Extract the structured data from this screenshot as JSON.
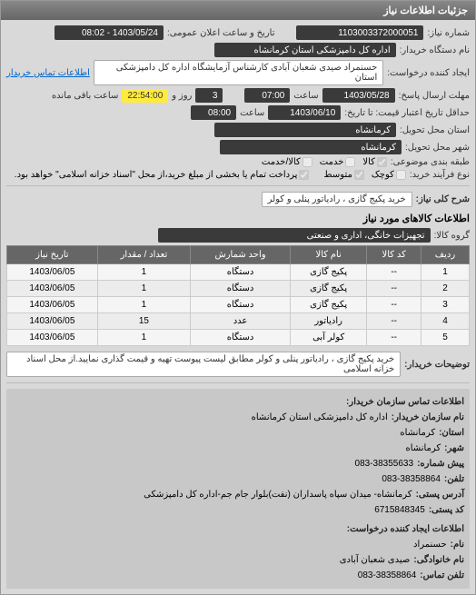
{
  "panel_title": "جزئیات اطلاعات نیاز",
  "top": {
    "need_no_label": "شماره نیاز:",
    "need_no": "1103003372000051",
    "announce_label": "تاریخ و ساعت اعلان عمومی:",
    "announce": "1403/05/24 - 08:02",
    "buyer_org_label": "نام دستگاه خریدار:",
    "buyer_org": "اداره کل دامپزشکی استان کرمانشاه",
    "creator_label": "ایجاد کننده درخواست:",
    "creator": "حسنمراد صیدی شعبان آبادی کارشناس آزمایشگاه اداره کل دامپزشکی استان",
    "contact_link": "اطلاعات تماس خریدار",
    "deadline_label": "مهلت ارسال پاسخ:",
    "deadline_date": "1403/05/28",
    "deadline_time_label": "ساعت",
    "deadline_time": "07:00",
    "days_label": "روز و",
    "days": "3",
    "remain_time": "22:54:00",
    "remain_label": "ساعت باقی مانده",
    "validity_label": "حداقل تاریخ اعتبار قیمت: تا تاریخ:",
    "validity_date": "1403/06/10",
    "validity_time_label": "ساعت",
    "validity_time": "08:00",
    "province_label": "استان محل تحویل:",
    "province": "کرمانشاه",
    "city_label": "شهر محل تحویل:",
    "city": "کرمانشاه",
    "subject_cat_label": "طبقه بندی موضوعی:",
    "cb_goods": "کالا",
    "cb_service": "خدمت",
    "cb_goods_service": "کالا/خدمت",
    "process_type_label": "نوع فرآیند خرید:",
    "cb_small": "کوچک",
    "cb_medium": "متوسط",
    "payment_note": "پرداخت تمام یا بخشی از مبلغ خرید،از محل \"اسناد خزانه اسلامی\" خواهد بود."
  },
  "need": {
    "title_label": "شرح کلی نیاز:",
    "title": "خرید پکیج گازی ، رادیاتور پنلی و کولر",
    "goods_section": "اطلاعات کالاهای مورد نیاز",
    "group_label": "گروه کالا:",
    "group": "تجهیزات خانگی، اداری و صنعتی"
  },
  "table": {
    "headers": [
      "ردیف",
      "کد کالا",
      "نام کالا",
      "واحد شمارش",
      "تعداد / مقدار",
      "تاریخ نیاز"
    ],
    "rows": [
      [
        "1",
        "--",
        "پکیج گازی",
        "دستگاه",
        "1",
        "1403/06/05"
      ],
      [
        "2",
        "--",
        "پکیج گازی",
        "دستگاه",
        "1",
        "1403/06/05"
      ],
      [
        "3",
        "--",
        "پکیج گازی",
        "دستگاه",
        "1",
        "1403/06/05"
      ],
      [
        "4",
        "--",
        "رادیاتور",
        "عدد",
        "15",
        "1403/06/05"
      ],
      [
        "5",
        "--",
        "کولر آبی",
        "دستگاه",
        "1",
        "1403/06/05"
      ]
    ]
  },
  "desc": {
    "label": "توضیحات خریدار:",
    "text": "خرید پکیج گازی ، رادیاتور پنلی و کولر مطابق لیست پیوست تهیه و قیمت گذاری نمایید.از محل اسناد خزانه اسلامی"
  },
  "buyer": {
    "section": "اطلاعات تماس سازمان خریدار:",
    "org_label": "نام سازمان خریدار:",
    "org": "اداره کل دامپزشکی استان کرمانشاه",
    "prov_label": "استان:",
    "prov": "کرمانشاه",
    "city_label": "شهر:",
    "city": "کرمانشاه",
    "pre_label": "پیش شماره:",
    "pre": "083-38355633",
    "tel_label": "تلفن:",
    "tel": "083-38358864",
    "addr_label": "آدرس پستی:",
    "addr": "کرمانشاه- میدان سپاه پاسداران (نفت)بلوار جام جم-اداره کل دامپزشکی",
    "zip_label": "کد پستی:",
    "zip": "6715848345",
    "req_section": "اطلاعات ایجاد کننده درخواست:",
    "name_label": "نام:",
    "name": "حسنمراد",
    "lname_label": "نام خانوادگی:",
    "lname": "صیدی شعبان آبادی",
    "rtel_label": "تلفن تماس:",
    "rtel": "083-38358864"
  }
}
